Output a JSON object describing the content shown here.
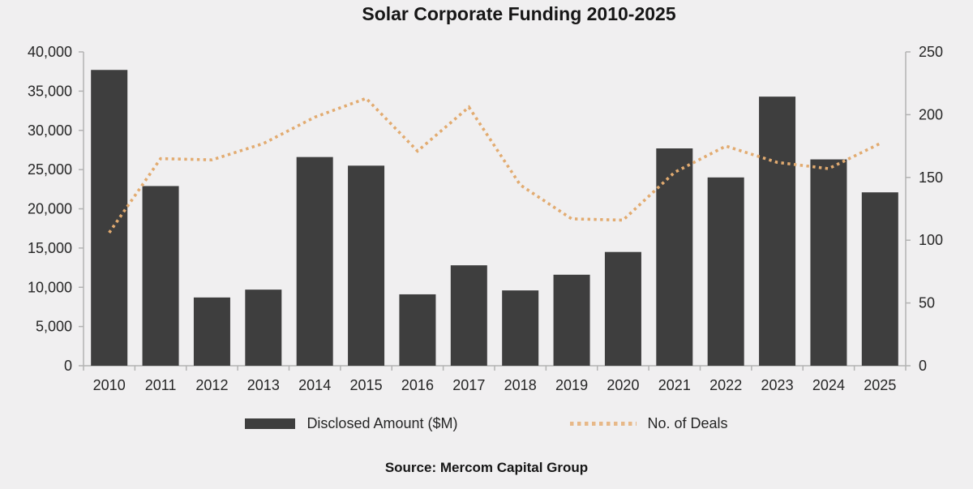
{
  "title": "Solar Corporate Funding 2010-2025",
  "source": "Source: Mercom Capital Group",
  "legend": [
    {
      "label": "Disclosed Amount ($M)"
    },
    {
      "label": "No. of Deals"
    }
  ],
  "colors": {
    "background": "#f0eff0",
    "bar": "#3e3e3e",
    "line": "#e2ab70",
    "axis": "#b3b3b3",
    "tick_text": "#262626"
  },
  "chart_data": {
    "type": "bar",
    "subtype": "combo bar + dotted line, dual y-axes",
    "title": "Solar Corporate Funding 2010-2025",
    "categories": [
      "2010",
      "2011",
      "2012",
      "2013",
      "2014",
      "2015",
      "2016",
      "2017",
      "2018",
      "2019",
      "2020",
      "2021",
      "2022",
      "2023",
      "2024",
      "2025"
    ],
    "series": [
      {
        "name": "Disclosed Amount ($M)",
        "type": "bar",
        "axis": "left",
        "values": [
          37700,
          22900,
          8700,
          9700,
          26600,
          25500,
          9100,
          12800,
          9600,
          11600,
          14500,
          27700,
          24000,
          34300,
          26300,
          22100
        ]
      },
      {
        "name": "No. of Deals",
        "type": "line",
        "line_style": "dotted",
        "axis": "right",
        "values": [
          106,
          165,
          164,
          177,
          198,
          213,
          171,
          206,
          144,
          117,
          116,
          154,
          175,
          162,
          157,
          177
        ]
      }
    ],
    "left_axis": {
      "min": 0,
      "max": 40000,
      "tick_step": 5000,
      "tick_labels": [
        "40,000",
        "35,000",
        "30,000",
        "25,000",
        "20,000",
        "15,000",
        "10,000",
        "5,000",
        "0"
      ]
    },
    "right_axis": {
      "min": 0,
      "max": 250,
      "tick_step": 50,
      "tick_labels": [
        "250",
        "200",
        "150",
        "100",
        "50",
        "0"
      ]
    },
    "grid": "off",
    "legend_position": "bottom"
  }
}
